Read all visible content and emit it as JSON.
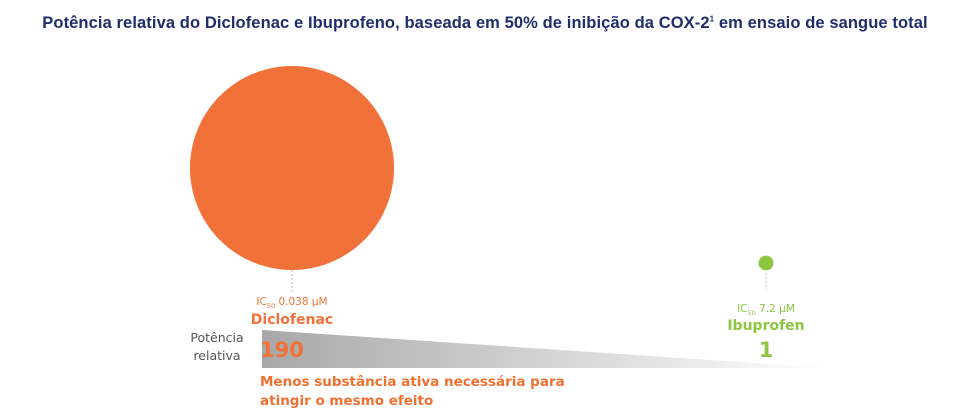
{
  "title": {
    "text": "Potência relativa do Diclofenac e Ibuprofeno, baseada em 50% de inibição da COX-2",
    "superscript": "1",
    "suffix": " em ensaio de sangue total"
  },
  "chart_data": {
    "type": "bubble",
    "title": "Potência relativa do Diclofenac e Ibuprofeno, baseada em 50% de inibição da COX-2¹ em ensaio de sangue total",
    "y_axis_label_lines": [
      "Potência",
      "relativa"
    ],
    "note_lines": [
      "Menos substância ativa necessária para",
      "atingir o mesmo efeito"
    ],
    "points": [
      {
        "name": "Diclofenac",
        "ic50_prefix": "IC",
        "ic50_subscript": "50",
        "ic50_value": " 0.038 µM",
        "relative_potency": 190,
        "relative_potency_label": "190",
        "color": "#f07238"
      },
      {
        "name": "Ibuprofen",
        "ic50_prefix": "IC",
        "ic50_subscript": "50",
        "ic50_value": " 7.2 µM",
        "relative_potency": 1,
        "relative_potency_label": "1",
        "color": "#8cc63f"
      }
    ],
    "wedge_colors": [
      "#a8a8a8",
      "#ffffff"
    ]
  }
}
